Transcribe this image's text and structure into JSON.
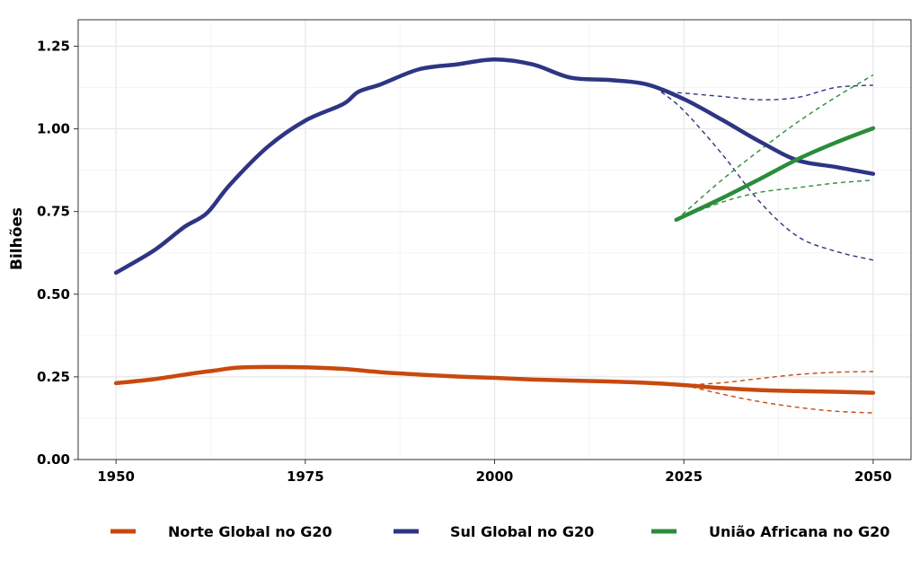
{
  "chart_data": {
    "type": "line",
    "ylabel": "Bilhões",
    "xlabel": "",
    "xlim": [
      1945,
      2055
    ],
    "ylim": [
      0,
      1.33
    ],
    "x_ticks": [
      1950,
      1975,
      2000,
      2025,
      2050
    ],
    "x_tick_labels": [
      "1950",
      "1975",
      "2000",
      "2025",
      "2050"
    ],
    "y_ticks": [
      0,
      0.25,
      0.5,
      0.75,
      1.0,
      1.25
    ],
    "y_tick_labels": [
      "0.00",
      "0.25",
      "0.50",
      "0.75",
      "1.00",
      "1.25"
    ],
    "grid": true,
    "legend_position": "bottom",
    "series": [
      {
        "name": "Norte Global no G20",
        "color": "#c8490f",
        "style": "solid",
        "points": [
          [
            1950,
            0.231
          ],
          [
            1955,
            0.243
          ],
          [
            1960,
            0.26
          ],
          [
            1963,
            0.269
          ],
          [
            1966,
            0.278
          ],
          [
            1970,
            0.28
          ],
          [
            1975,
            0.279
          ],
          [
            1980,
            0.274
          ],
          [
            1985,
            0.264
          ],
          [
            1990,
            0.257
          ],
          [
            1995,
            0.251
          ],
          [
            2000,
            0.247
          ],
          [
            2005,
            0.242
          ],
          [
            2010,
            0.239
          ],
          [
            2015,
            0.236
          ],
          [
            2020,
            0.232
          ],
          [
            2025,
            0.225
          ],
          [
            2030,
            0.216
          ],
          [
            2035,
            0.21
          ],
          [
            2040,
            0.207
          ],
          [
            2045,
            0.205
          ],
          [
            2050,
            0.202
          ]
        ]
      },
      {
        "name": "Norte Global no G20 (limite superior)",
        "color": "#c8490f",
        "style": "dashed",
        "points": [
          [
            2025,
            0.225
          ],
          [
            2030,
            0.232
          ],
          [
            2035,
            0.245
          ],
          [
            2040,
            0.257
          ],
          [
            2045,
            0.264
          ],
          [
            2050,
            0.266
          ]
        ]
      },
      {
        "name": "Norte Global no G20 (limite inferior)",
        "color": "#c8490f",
        "style": "dashed",
        "points": [
          [
            2025,
            0.225
          ],
          [
            2030,
            0.198
          ],
          [
            2035,
            0.175
          ],
          [
            2040,
            0.158
          ],
          [
            2045,
            0.146
          ],
          [
            2050,
            0.141
          ]
        ]
      },
      {
        "name": "Sul Global no G20",
        "color": "#2e3583",
        "style": "solid",
        "points": [
          [
            1950,
            0.565
          ],
          [
            1955,
            0.632
          ],
          [
            1959,
            0.703
          ],
          [
            1962,
            0.745
          ],
          [
            1965,
            0.83
          ],
          [
            1970,
            0.945
          ],
          [
            1975,
            1.025
          ],
          [
            1980,
            1.075
          ],
          [
            1982,
            1.112
          ],
          [
            1985,
            1.135
          ],
          [
            1990,
            1.18
          ],
          [
            1995,
            1.195
          ],
          [
            2000,
            1.21
          ],
          [
            2005,
            1.195
          ],
          [
            2010,
            1.155
          ],
          [
            2015,
            1.148
          ],
          [
            2020,
            1.135
          ],
          [
            2025,
            1.09
          ],
          [
            2030,
            1.028
          ],
          [
            2035,
            0.962
          ],
          [
            2040,
            0.905
          ],
          [
            2045,
            0.885
          ],
          [
            2050,
            0.864
          ]
        ]
      },
      {
        "name": "Sul Global no G20 (limite superior)",
        "color": "#2e3583",
        "style": "dashed",
        "points": [
          [
            2022,
            1.112
          ],
          [
            2025,
            1.108
          ],
          [
            2030,
            1.098
          ],
          [
            2035,
            1.088
          ],
          [
            2040,
            1.095
          ],
          [
            2045,
            1.125
          ],
          [
            2050,
            1.132
          ]
        ]
      },
      {
        "name": "Sul Global no G20 (limite inferior)",
        "color": "#2e3583",
        "style": "dashed",
        "points": [
          [
            2022,
            1.112
          ],
          [
            2025,
            1.055
          ],
          [
            2030,
            0.925
          ],
          [
            2035,
            0.78
          ],
          [
            2040,
            0.675
          ],
          [
            2045,
            0.63
          ],
          [
            2050,
            0.603
          ]
        ]
      },
      {
        "name": "União Africana no G20",
        "color": "#2b8c3a",
        "style": "solid",
        "points": [
          [
            2024,
            0.725
          ],
          [
            2030,
            0.79
          ],
          [
            2035,
            0.848
          ],
          [
            2040,
            0.908
          ],
          [
            2045,
            0.958
          ],
          [
            2050,
            1.002
          ]
        ]
      },
      {
        "name": "União Africana no G20 (limite superior)",
        "color": "#2b8c3a",
        "style": "dashed",
        "points": [
          [
            2024,
            0.725
          ],
          [
            2030,
            0.845
          ],
          [
            2035,
            0.935
          ],
          [
            2040,
            1.02
          ],
          [
            2045,
            1.095
          ],
          [
            2050,
            1.163
          ]
        ]
      },
      {
        "name": "União Africana no G20 (limite inferior)",
        "color": "#2b8c3a",
        "style": "dashed",
        "points": [
          [
            2024,
            0.725
          ],
          [
            2030,
            0.778
          ],
          [
            2035,
            0.808
          ],
          [
            2040,
            0.822
          ],
          [
            2045,
            0.836
          ],
          [
            2050,
            0.845
          ]
        ]
      }
    ],
    "legend": [
      {
        "label": "Norte Global no G20",
        "color": "#c8490f"
      },
      {
        "label": "Sul Global no G20",
        "color": "#2e3583"
      },
      {
        "label": "União Africana no G20",
        "color": "#2b8c3a"
      }
    ]
  }
}
